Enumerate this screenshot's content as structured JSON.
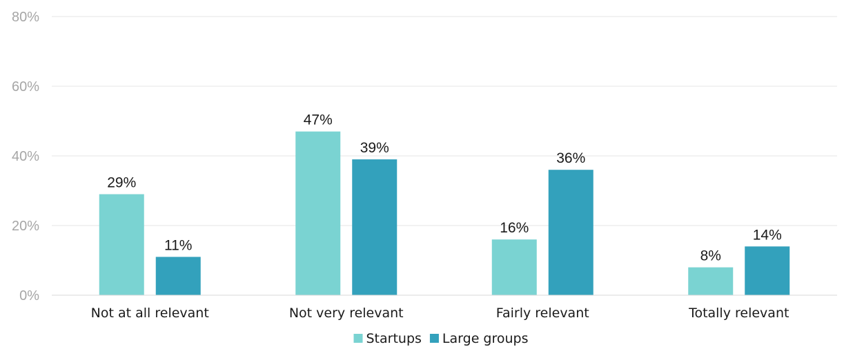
{
  "chart_data": {
    "type": "bar",
    "categories": [
      "Not at all relevant",
      "Not very relevant",
      "Fairly relevant",
      "Totally relevant"
    ],
    "series": [
      {
        "name": "Startups",
        "values": [
          29,
          47,
          16,
          8
        ],
        "labels": [
          "29%",
          "47%",
          "16%",
          "8%"
        ],
        "color": "#7ad3d2"
      },
      {
        "name": "Large groups",
        "values": [
          11,
          39,
          36,
          14
        ],
        "labels": [
          "11%",
          "39%",
          "36%",
          "14%"
        ],
        "color": "#33a1bc"
      }
    ],
    "ylim": [
      0,
      80
    ],
    "yticks": [
      "0%",
      "20%",
      "40%",
      "60%",
      "80%"
    ],
    "ytick_values": [
      0,
      20,
      40,
      60,
      80
    ],
    "grid": true,
    "legend_position": "bottom-center",
    "title": "",
    "xlabel": "",
    "ylabel": ""
  }
}
